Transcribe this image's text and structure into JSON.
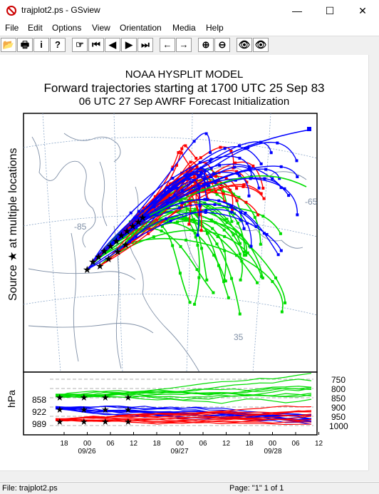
{
  "window": {
    "title": "trajplot2.ps - GSview",
    "minimize_glyph": "—",
    "maximize_glyph": "☐",
    "close_glyph": "✕"
  },
  "menu": [
    "File",
    "Edit",
    "Options",
    "View",
    "Orientation",
    "Media",
    "Help"
  ],
  "toolbar": {
    "buttons": [
      {
        "name": "open-icon",
        "glyph": "📂"
      },
      {
        "name": "print-icon",
        "glyph": "🖶"
      },
      {
        "name": "info-icon",
        "glyph": "i"
      },
      {
        "name": "help-icon",
        "glyph": "?"
      },
      {
        "name": "goto-page-icon",
        "glyph": "☞"
      },
      {
        "name": "first-page-icon",
        "glyph": "⏮"
      },
      {
        "name": "prev-page-icon",
        "glyph": "◀"
      },
      {
        "name": "next-page-icon",
        "glyph": "▶"
      },
      {
        "name": "last-page-icon",
        "glyph": "⏭"
      },
      {
        "name": "back-icon",
        "glyph": "←"
      },
      {
        "name": "forward-icon",
        "glyph": "→"
      },
      {
        "name": "zoom-in-icon",
        "glyph": "⊕"
      },
      {
        "name": "zoom-out-icon",
        "glyph": "⊖"
      },
      {
        "name": "find-icon",
        "glyph": "👁"
      },
      {
        "name": "find-next-icon",
        "glyph": "👁"
      }
    ]
  },
  "plot": {
    "title1": "NOAA HYSPLIT MODEL",
    "title2": "Forward trajectories starting at 1700 UTC 25 Sep 83",
    "title3": "06 UTC 27 Sep    AWRF  Forecast Initialization",
    "side_label": "Source ★  at multiple locations",
    "map_labels": {
      "lon85": "-85",
      "lon65": "-65",
      "lat35": "35"
    },
    "hpa_label": "hPa",
    "left_levels": [
      "858",
      "922",
      "989"
    ],
    "right_levels": [
      "750",
      "800",
      "850",
      "900",
      "950",
      "1000"
    ],
    "time_ticks": [
      "18",
      "00",
      "06",
      "12",
      "18",
      "00",
      "06",
      "12",
      "18",
      "00",
      "06",
      "12"
    ],
    "date_labels": [
      "09/26",
      "09/27",
      "09/28"
    ],
    "colors": {
      "red": "#ff0000",
      "blue": "#0000ff",
      "green": "#00dd00"
    }
  },
  "status": {
    "file": "File: trajplot2.ps",
    "page": "Page: \"1\"  1 of 1"
  }
}
